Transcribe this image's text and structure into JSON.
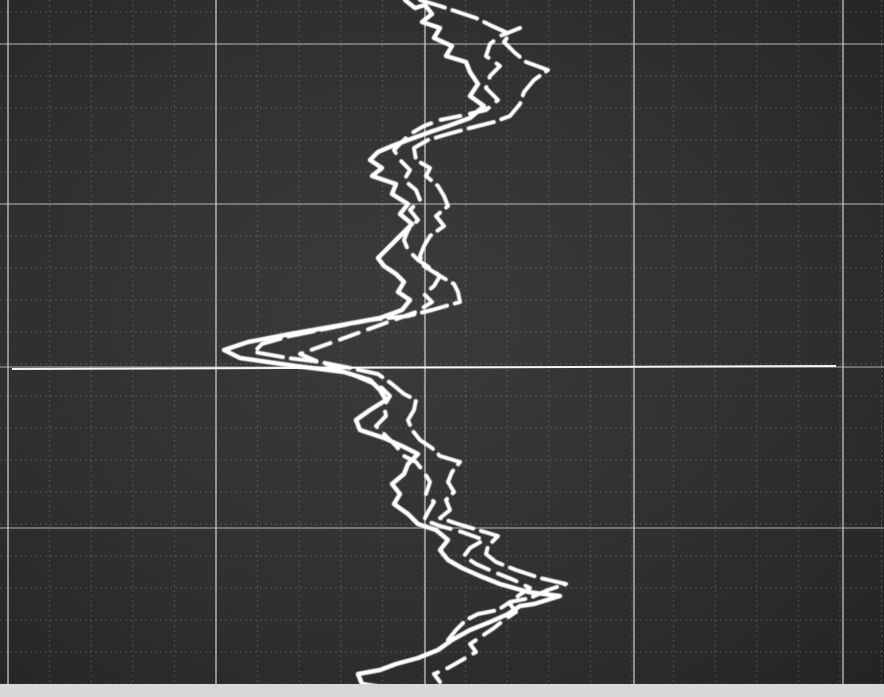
{
  "screen": {
    "background_color": "#333333",
    "grid_color": "#d0d0d0",
    "trace_color": "#ffffff"
  },
  "graticule": {
    "major_divisions_x": 4,
    "minor_per_major": 5,
    "has_center_baseline": true
  },
  "traces": [
    {
      "name": "trace-solid",
      "style": "solid"
    },
    {
      "name": "trace-dashed-upper",
      "style": "dashed"
    },
    {
      "name": "trace-dashed-lower",
      "style": "dashed"
    }
  ]
}
